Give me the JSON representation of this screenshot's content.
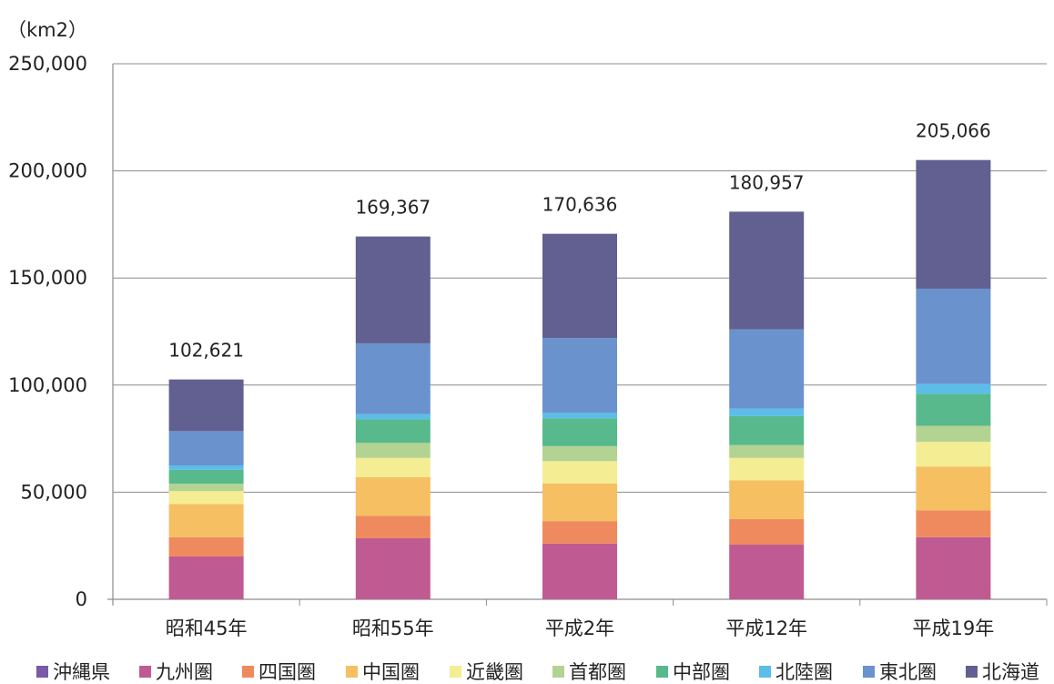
{
  "chart_data": {
    "type": "bar",
    "stacked": true,
    "unit_label": "（km2）",
    "categories": [
      "昭和45年",
      "昭和55年",
      "平成2年",
      "平成12年",
      "平成19年"
    ],
    "totals": [
      "102,621",
      "169,367",
      "170,636",
      "180,957",
      "205,066"
    ],
    "ylim": [
      0,
      250000
    ],
    "yticks": [
      0,
      50000,
      100000,
      150000,
      200000,
      250000
    ],
    "ytick_labels": [
      "0",
      "50,000",
      "100,000",
      "150,000",
      "200,000",
      "250,000"
    ],
    "grid": true,
    "legend_position": "bottom",
    "series": [
      {
        "name": "沖縄県",
        "color": "#7b5aa6",
        "values": [
          0,
          0,
          0,
          0,
          0
        ]
      },
      {
        "name": "九州圏",
        "color": "#c05a92",
        "values": [
          20000,
          28500,
          26000,
          25500,
          29000
        ]
      },
      {
        "name": "四国圏",
        "color": "#ee8a5e",
        "values": [
          9000,
          10500,
          10500,
          12000,
          12500
        ]
      },
      {
        "name": "中国圏",
        "color": "#f5bf62",
        "values": [
          15500,
          18000,
          17500,
          18000,
          20500
        ]
      },
      {
        "name": "近畿圏",
        "color": "#f4ed93",
        "values": [
          6000,
          9000,
          10500,
          10500,
          11500
        ]
      },
      {
        "name": "首都圏",
        "color": "#b3d393",
        "values": [
          3500,
          7000,
          7000,
          6000,
          7500
        ]
      },
      {
        "name": "中部圏",
        "color": "#57b98c",
        "values": [
          6500,
          11000,
          13000,
          13500,
          15000
        ]
      },
      {
        "name": "北陸圏",
        "color": "#5cbde9",
        "values": [
          2000,
          2500,
          2500,
          3500,
          4500
        ]
      },
      {
        "name": "東北圏",
        "color": "#6a92cd",
        "values": [
          16000,
          33000,
          35000,
          37000,
          44500
        ]
      },
      {
        "name": "北海道",
        "color": "#616091",
        "values": [
          24121,
          49867,
          48636,
          54957,
          60066
        ]
      }
    ]
  }
}
